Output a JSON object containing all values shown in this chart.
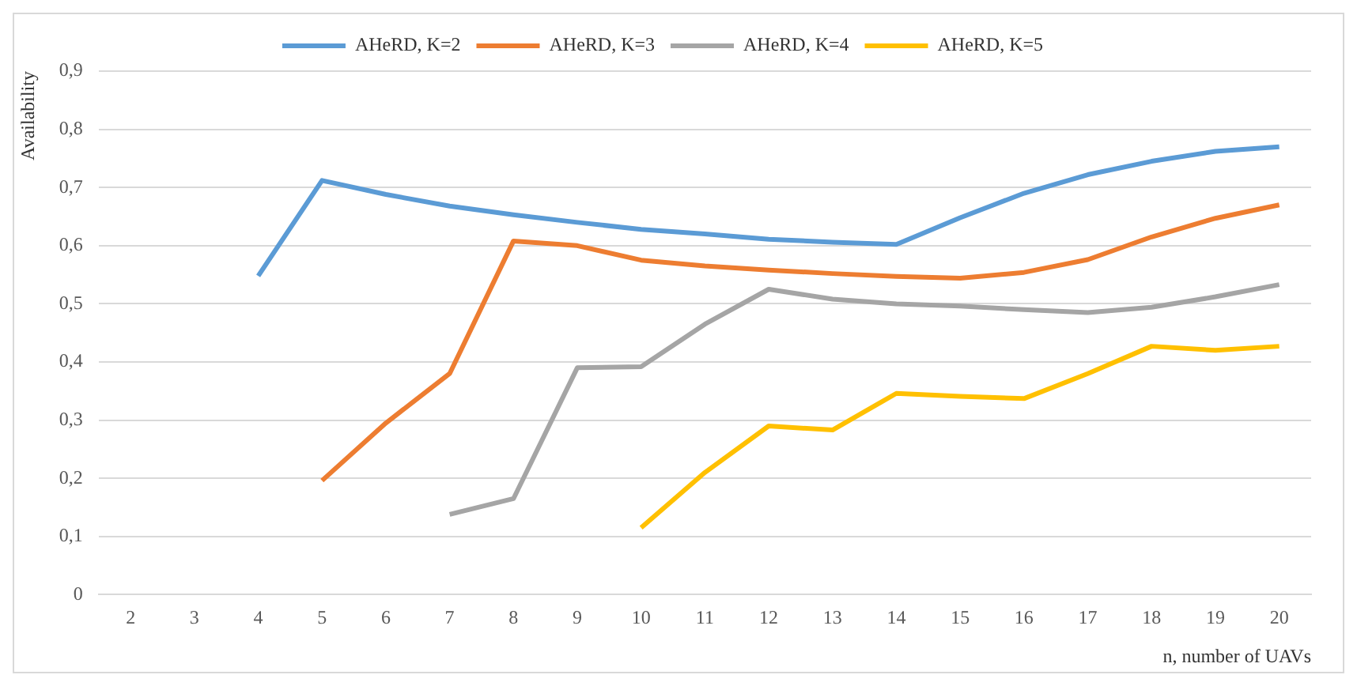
{
  "chart_data": {
    "type": "line",
    "xlabel": "n, number of UAVs",
    "ylabel": "Availability",
    "categories": [
      "2",
      "3",
      "4",
      "5",
      "6",
      "7",
      "8",
      "9",
      "10",
      "11",
      "12",
      "13",
      "14",
      "15",
      "16",
      "17",
      "18",
      "19",
      "20"
    ],
    "series": [
      {
        "name": "AHeRD, K=2",
        "color": "#5b9bd5",
        "values": [
          null,
          null,
          0.548,
          0.712,
          0.688,
          0.668,
          0.653,
          0.64,
          0.628,
          0.62,
          0.611,
          0.606,
          0.602,
          0.648,
          0.69,
          0.722,
          0.745,
          0.762,
          0.77
        ]
      },
      {
        "name": "AHeRD, K=3",
        "color": "#ed7d31",
        "values": [
          null,
          null,
          null,
          0.196,
          0.295,
          0.38,
          0.608,
          0.6,
          0.575,
          0.565,
          0.558,
          0.552,
          0.547,
          0.544,
          0.554,
          0.576,
          0.615,
          0.647,
          0.67
        ]
      },
      {
        "name": "AHeRD, K=4",
        "color": "#a5a5a5",
        "values": [
          null,
          null,
          null,
          null,
          null,
          0.138,
          0.165,
          0.39,
          0.392,
          0.465,
          0.525,
          0.508,
          0.5,
          0.496,
          0.49,
          0.485,
          0.494,
          0.512,
          0.533
        ]
      },
      {
        "name": "AHeRD, K=5",
        "color": "#ffc000",
        "values": [
          null,
          null,
          null,
          null,
          null,
          null,
          null,
          null,
          0.115,
          0.21,
          0.29,
          0.283,
          0.346,
          0.341,
          0.337,
          0.38,
          0.427,
          0.42,
          0.427
        ]
      }
    ],
    "ylim": [
      0,
      0.9
    ],
    "yticks": [
      0,
      {
        "value": 0.1,
        "label": "0,1"
      },
      {
        "value": 0.2,
        "label": "0,2"
      },
      {
        "value": 0.3,
        "label": "0,3"
      },
      {
        "value": 0.4,
        "label": "0,4"
      },
      {
        "value": 0.5,
        "label": "0,5"
      },
      {
        "value": 0.6,
        "label": "0,6"
      },
      {
        "value": 0.7,
        "label": "0,7"
      },
      {
        "value": 0.8,
        "label": "0,8"
      },
      {
        "value": 0.9,
        "label": "0,9"
      }
    ],
    "grid": "y",
    "legend": "top",
    "marker": "none",
    "line_style": "solid"
  }
}
